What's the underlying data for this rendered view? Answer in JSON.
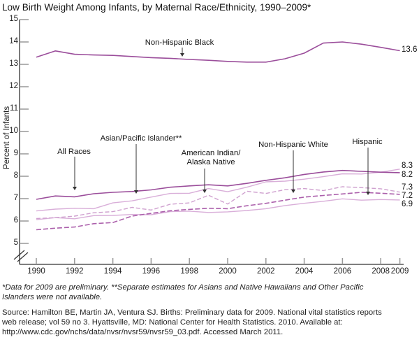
{
  "title": "Low Birth Weight Among Infants, by Maternal Race/Ethnicity, 1990–2009*",
  "chart_data": {
    "type": "line",
    "title": "Low Birth Weight Among Infants, by Maternal Race/Ethnicity, 1990–2009*",
    "xlabel": "",
    "ylabel": "Percent of Infants",
    "ylim": [
      5,
      15
    ],
    "axis_break_below_y": 5,
    "grid": false,
    "legend_position": "inline-annotations",
    "x": [
      1990,
      1991,
      1992,
      1993,
      1994,
      1995,
      1996,
      1997,
      1998,
      1999,
      2000,
      2001,
      2002,
      2003,
      2004,
      2005,
      2006,
      2007,
      2008,
      2009
    ],
    "x_tick_labels": [
      "1990",
      "1992",
      "1994",
      "1996",
      "1998",
      "2000",
      "2002",
      "2004",
      "2006",
      "2008",
      "2009"
    ],
    "x_tick_years": [
      1990,
      1992,
      1994,
      1996,
      1998,
      2000,
      2002,
      2004,
      2006,
      2008,
      2009
    ],
    "y_tick_values": [
      5,
      6,
      7,
      8,
      9,
      10,
      11,
      12,
      13,
      14,
      15
    ],
    "y_tick_labels": [
      "5",
      "6",
      "7",
      "8",
      "9",
      "10",
      "11",
      "12",
      "13",
      "14",
      "15"
    ],
    "series": [
      {
        "name": "Non-Hispanic Black",
        "end_label": "13.6",
        "style": "solid-dark",
        "values": [
          13.32,
          13.6,
          13.45,
          13.42,
          13.4,
          13.35,
          13.3,
          13.27,
          13.22,
          13.18,
          13.13,
          13.1,
          13.1,
          13.25,
          13.5,
          13.95,
          14.0,
          13.9,
          13.76,
          13.61
        ]
      },
      {
        "name": "Asian/Pacific Islander**",
        "end_label": "8.3",
        "style": "solid-light",
        "values": [
          6.45,
          6.53,
          6.57,
          6.55,
          6.81,
          6.9,
          7.07,
          7.23,
          7.24,
          7.45,
          7.31,
          7.51,
          7.75,
          7.78,
          7.87,
          7.98,
          8.11,
          8.1,
          8.18,
          8.32
        ]
      },
      {
        "name": "All Races",
        "end_label": "8.2",
        "style": "solid-dark",
        "values": [
          6.97,
          7.12,
          7.08,
          7.22,
          7.28,
          7.32,
          7.39,
          7.51,
          7.57,
          7.62,
          7.57,
          7.68,
          7.82,
          7.93,
          8.08,
          8.19,
          8.26,
          8.22,
          8.18,
          8.16
        ]
      },
      {
        "name": "American Indian/Alaska Native",
        "end_label": "7.3",
        "style": "dashed-light",
        "values": [
          6.11,
          6.15,
          6.22,
          6.37,
          6.42,
          6.61,
          6.49,
          6.75,
          6.81,
          7.15,
          6.76,
          7.33,
          7.23,
          7.4,
          7.45,
          7.36,
          7.53,
          7.49,
          7.44,
          7.29
        ]
      },
      {
        "name": "Non-Hispanic White",
        "end_label": "7.2",
        "style": "dashed-dark",
        "values": [
          5.61,
          5.68,
          5.73,
          5.88,
          5.93,
          6.22,
          6.34,
          6.46,
          6.52,
          6.57,
          6.55,
          6.68,
          6.79,
          6.93,
          7.07,
          7.14,
          7.21,
          7.28,
          7.24,
          7.19
        ]
      },
      {
        "name": "Hispanic",
        "end_label": "6.9",
        "style": "solid-light",
        "values": [
          6.06,
          6.15,
          6.1,
          6.24,
          6.25,
          6.29,
          6.28,
          6.42,
          6.44,
          6.38,
          6.41,
          6.47,
          6.55,
          6.69,
          6.79,
          6.88,
          6.99,
          6.93,
          6.96,
          6.94
        ]
      }
    ],
    "annotations": [
      {
        "text": "Non-Hispanic Black"
      },
      {
        "text": "All Races"
      },
      {
        "text": "Asian/Pacific Islander**"
      },
      {
        "text": "American Indian/\nAlaska Native"
      },
      {
        "text": "Non-Hispanic White"
      },
      {
        "text": "Hispanic"
      }
    ],
    "colors": {
      "solid_dark": "#9b4e9b",
      "solid_light": "#d9afd9",
      "dashed_light": "#cfa0cf",
      "dashed_dark": "#ab5fab"
    }
  },
  "footnotes": [
    "*Data for 2009 are preliminary. **Separate estimates for Asians and Native Hawaiians and Other Pacific",
    "Islanders were not available."
  ],
  "source": [
    "Source: Hamilton BE, Martin JA, Ventura SJ. Births: Preliminary data for 2009. National vital statistics reports",
    "web release; vol 59 no 3. Hyattsville, MD: National Center for Health Statistics. 2010. Available at:",
    "http://www.cdc.gov/nchs/data/nvsr/nvsr59/nvsr59_03.pdf. Accessed March 2011."
  ]
}
